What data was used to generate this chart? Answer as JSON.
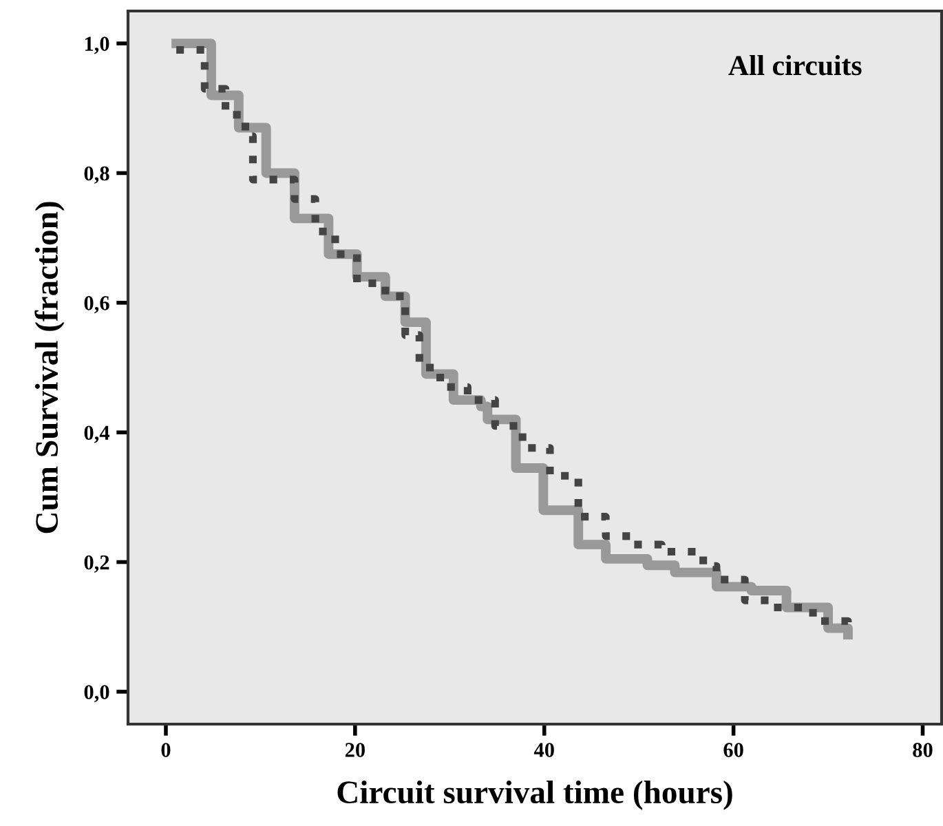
{
  "chart_data": {
    "type": "step",
    "xlabel": "Circuit survival time (hours)",
    "ylabel": "Cum Survival (fraction)",
    "annotations": [
      "All circuits"
    ],
    "xlim": [
      -4,
      82
    ],
    "xticks": [
      0,
      20,
      40,
      60,
      80
    ],
    "ylim": [
      -0.05,
      1.05
    ],
    "yticks": [
      {
        "value": 0.0,
        "label": "0,0"
      },
      {
        "value": 0.2,
        "label": "0,2"
      },
      {
        "value": 0.4,
        "label": "0,4"
      },
      {
        "value": 0.6,
        "label": "0,6"
      },
      {
        "value": 0.8,
        "label": "0,8"
      },
      {
        "value": 1.0,
        "label": "1,0"
      }
    ],
    "grid": false,
    "legend": false,
    "series": [
      {
        "color": "#999999",
        "line_style": "solid",
        "x": [
          1.1,
          4.8,
          7.7,
          10.6,
          13.6,
          17.2,
          20.2,
          23.2,
          25.3,
          27.5,
          30.4,
          33.3,
          34.0,
          37.0,
          39.9,
          43.6,
          46.5,
          50.9,
          53.8,
          58.2,
          61.9,
          65.6,
          70.0,
          72.1
        ],
        "values": [
          1.0,
          0.92,
          0.87,
          0.8,
          0.73,
          0.675,
          0.64,
          0.61,
          0.57,
          0.49,
          0.45,
          0.44,
          0.42,
          0.345,
          0.28,
          0.227,
          0.205,
          0.195,
          0.184,
          0.162,
          0.156,
          0.13,
          0.098,
          0.088
        ]
      },
      {
        "color": "#444444",
        "line_style": "dotted",
        "x": [
          1.1,
          4.1,
          6.3,
          8.4,
          9.2,
          11.4,
          13.6,
          15.8,
          17.9,
          20.2,
          23.2,
          25.3,
          26.8,
          29.0,
          31.9,
          34.8,
          37.7,
          40.6,
          43.6,
          46.5,
          49.5,
          52.4,
          56.8,
          58.2,
          61.2,
          64.0,
          68.4,
          72.1
        ],
        "values": [
          0.99,
          0.93,
          0.89,
          0.857,
          0.79,
          0.79,
          0.76,
          0.71,
          0.675,
          0.63,
          0.61,
          0.55,
          0.5,
          0.47,
          0.45,
          0.41,
          0.376,
          0.333,
          0.27,
          0.24,
          0.227,
          0.216,
          0.194,
          0.173,
          0.141,
          0.13,
          0.109,
          0.088
        ]
      }
    ]
  }
}
